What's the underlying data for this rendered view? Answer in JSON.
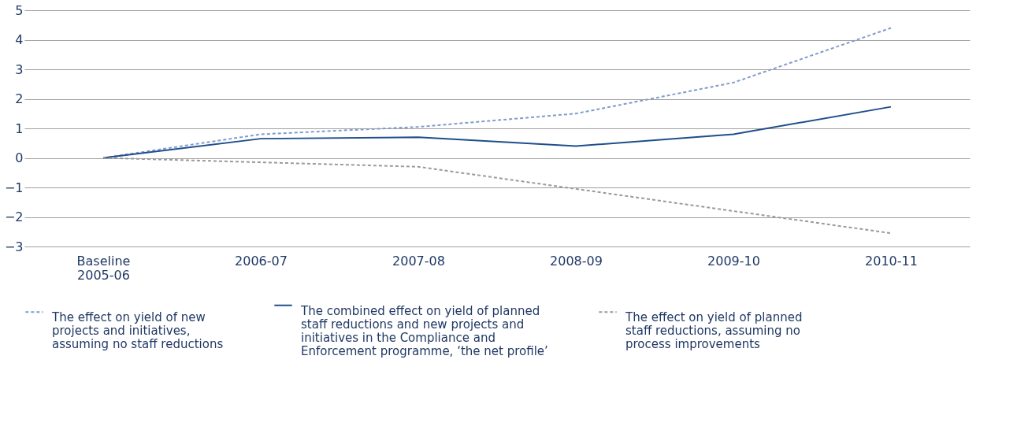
{
  "chart_data": {
    "type": "line",
    "categories": [
      "Baseline 2005-06",
      "2006-07",
      "2007-08",
      "2008-09",
      "2009-10",
      "2010-11"
    ],
    "ylim": [
      -3,
      5
    ],
    "yticks": [
      -3,
      -2,
      -1,
      0,
      1,
      2,
      3,
      4,
      5
    ],
    "grid": "y",
    "legend": "bottom",
    "marker": "none",
    "series": [
      {
        "name": "The effect on yield of new projects and initiatives, assuming no staff reductions",
        "color": "#7f9ccb",
        "line_style": "dashed",
        "values": [
          0,
          0.8,
          1.05,
          1.5,
          2.55,
          4.4
        ]
      },
      {
        "name": "The combined effect on yield of planned staff reductions and new projects and initiatives in the Compliance and Enforcement programme, ‘the net profile’",
        "color": "#1f4e8c",
        "line_style": "solid",
        "values": [
          0,
          0.65,
          0.7,
          0.4,
          0.8,
          1.73
        ]
      },
      {
        "name": "The effect on yield of planned staff reductions, assuming no process improvements",
        "color": "#9a9a9a",
        "line_style": "dashed",
        "values": [
          0,
          -0.15,
          -0.3,
          -1.05,
          -1.8,
          -2.55
        ]
      }
    ]
  }
}
